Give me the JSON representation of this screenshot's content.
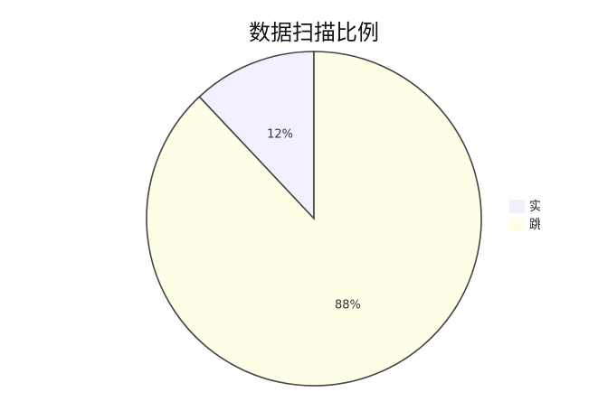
{
  "chart_data": {
    "type": "pie",
    "title": "数据扫描比例",
    "slices": [
      {
        "label": "实",
        "value": 12,
        "label_text": "12%",
        "color": "#f0f0fe"
      },
      {
        "label": "跳",
        "value": 88,
        "label_text": "88%",
        "color": "#ffffe8"
      }
    ],
    "start_angle": "top",
    "direction": "counterclockwise",
    "legend_position": "right"
  }
}
